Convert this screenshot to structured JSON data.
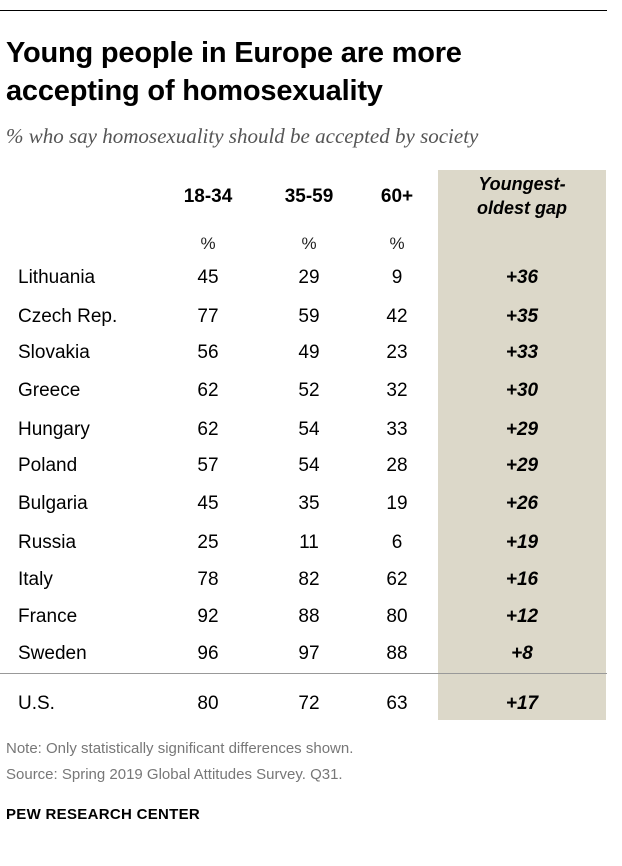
{
  "title": "Young people in Europe are more accepting of homosexuality",
  "subtitle": "% who say homosexuality should be accepted by society",
  "columns": [
    "18-34",
    "35-59",
    "60+"
  ],
  "gap_header": [
    "Youngest-",
    "oldest gap"
  ],
  "unit": "%",
  "note": "Note: Only statistically significant differences shown.",
  "source": "Source: Spring 2019 Global Attitudes Survey. Q31.",
  "brand": "PEW RESEARCH CENTER",
  "colors": {
    "gap_column_bg": "#dcd8c9"
  },
  "chart_data": {
    "type": "table",
    "title": "Young people in Europe are more accepting of homosexuality",
    "subtitle": "% who say homosexuality should be accepted by society",
    "columns": [
      "18-34",
      "35-59",
      "60+",
      "Youngest-oldest gap"
    ],
    "rows": [
      {
        "country": "Lithuania",
        "v18_34": "45",
        "v35_59": "29",
        "v60": "9",
        "gap": "+36"
      },
      {
        "country": "Czech Rep.",
        "v18_34": "77",
        "v35_59": "59",
        "v60": "42",
        "gap": "+35"
      },
      {
        "country": "Slovakia",
        "v18_34": "56",
        "v35_59": "49",
        "v60": "23",
        "gap": "+33"
      },
      {
        "country": "Greece",
        "v18_34": "62",
        "v35_59": "52",
        "v60": "32",
        "gap": "+30"
      },
      {
        "country": "Hungary",
        "v18_34": "62",
        "v35_59": "54",
        "v60": "33",
        "gap": "+29"
      },
      {
        "country": "Poland",
        "v18_34": "57",
        "v35_59": "54",
        "v60": "28",
        "gap": "+29"
      },
      {
        "country": "Bulgaria",
        "v18_34": "45",
        "v35_59": "35",
        "v60": "19",
        "gap": "+26"
      },
      {
        "country": "Russia",
        "v18_34": "25",
        "v35_59": "11",
        "v60": "6",
        "gap": "+19"
      },
      {
        "country": "Italy",
        "v18_34": "78",
        "v35_59": "82",
        "v60": "62",
        "gap": "+16"
      },
      {
        "country": "France",
        "v18_34": "92",
        "v35_59": "88",
        "v60": "80",
        "gap": "+12"
      },
      {
        "country": "Sweden",
        "v18_34": "96",
        "v35_59": "97",
        "v60": "88",
        "gap": "+8"
      },
      {
        "country": "U.S.",
        "v18_34": "80",
        "v35_59": "72",
        "v60": "63",
        "gap": "+17"
      }
    ]
  }
}
